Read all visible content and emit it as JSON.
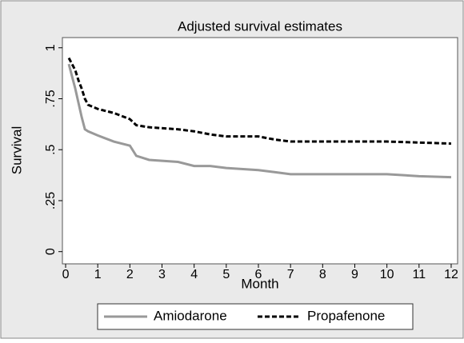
{
  "chart_data": {
    "type": "line",
    "title": "Adjusted survival estimates",
    "x_label": "Month",
    "y_label": "Survival",
    "x": [
      0.1,
      0.2,
      0.3,
      0.4,
      0.5,
      0.6,
      0.7,
      1,
      1.5,
      2,
      2.2,
      2.6,
      3.5,
      4,
      4.5,
      5,
      6,
      6.5,
      7,
      8,
      9,
      10,
      11,
      12
    ],
    "series": [
      {
        "name": "Amiodarone",
        "color": "#999999",
        "dash": false,
        "values": [
          0.92,
          0.86,
          0.8,
          0.73,
          0.66,
          0.6,
          0.59,
          0.57,
          0.54,
          0.52,
          0.47,
          0.45,
          0.44,
          0.42,
          0.42,
          0.41,
          0.4,
          0.39,
          0.38,
          0.38,
          0.38,
          0.38,
          0.37,
          0.365
        ]
      },
      {
        "name": "Propafenone",
        "color": "#000000",
        "dash": true,
        "values": [
          0.95,
          0.92,
          0.89,
          0.84,
          0.8,
          0.75,
          0.72,
          0.7,
          0.68,
          0.65,
          0.62,
          0.61,
          0.6,
          0.59,
          0.575,
          0.565,
          0.565,
          0.55,
          0.54,
          0.54,
          0.54,
          0.54,
          0.535,
          0.53
        ]
      }
    ],
    "xlim": [
      -0.1,
      12.2
    ],
    "ylim": [
      -0.06,
      1.05
    ],
    "xticks": [
      0,
      1,
      2,
      3,
      4,
      5,
      6,
      7,
      8,
      9,
      10,
      11,
      12
    ],
    "yticks": [
      0,
      {
        "value": 0.25,
        "label": ".25"
      },
      {
        "value": 0.5,
        "label": ".5"
      },
      {
        "value": 0.75,
        "label": ".75"
      },
      1
    ],
    "grid": false,
    "legend": "bottom"
  }
}
